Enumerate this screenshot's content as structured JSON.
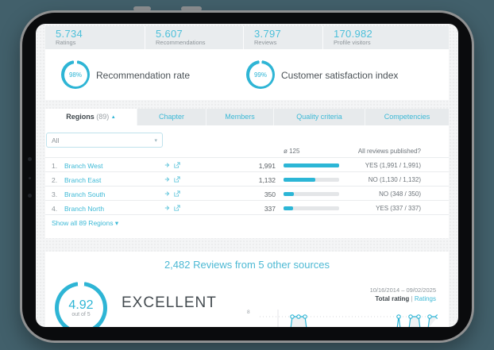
{
  "colors": {
    "accent": "#2eb5d5",
    "accent_light": "#4cc0da",
    "page_background": "#42606b",
    "band_background": "#e9ecee",
    "dark_text": "#424a4f",
    "gray_text": "#8d9499"
  },
  "stats": [
    {
      "value": "5.734",
      "label": "Ratings"
    },
    {
      "value": "5.607",
      "label": "Recommendations"
    },
    {
      "value": "3.797",
      "label": "Reviews"
    },
    {
      "value": "170.982",
      "label": "Profile visitors"
    }
  ],
  "gauges": [
    {
      "value": "98%",
      "percent": 98,
      "label": "Recommendation rate"
    },
    {
      "value": "99%",
      "percent": 99,
      "label": "Customer satisfaction index"
    }
  ],
  "tabs": {
    "regions_label": "Regions",
    "regions_count": "(89)",
    "items": [
      "Chapter",
      "Members",
      "Quality criteria",
      "Competencies"
    ]
  },
  "filter": {
    "value": "All"
  },
  "table": {
    "avg_header": "ø 125",
    "published_header": "All reviews published?",
    "rows": [
      {
        "index": "1.",
        "name": "Branch West",
        "value": "1,991",
        "bar_pct": 100,
        "published": "YES (1,991 / 1,991)"
      },
      {
        "index": "2.",
        "name": "Branch East",
        "value": "1,132",
        "bar_pct": 57,
        "published": "NO (1,130 / 1,132)"
      },
      {
        "index": "3.",
        "name": "Branch South",
        "value": "350",
        "bar_pct": 18,
        "published": "NO (348 / 350)"
      },
      {
        "index": "4.",
        "name": "Branch North",
        "value": "337",
        "bar_pct": 17,
        "published": "YES (337 / 337)"
      }
    ],
    "show_all": "Show all 89 Regions"
  },
  "reviews": {
    "title": "2,482 Reviews from 5 other sources",
    "score": "4.92",
    "score_sub": "out of 5",
    "score_percent": 98,
    "grade": "EXCELLENT",
    "date_range": "10/16/2014 – 09/02/2025",
    "total_rating_label": "Total rating",
    "separator": "|",
    "ratings_link": "Ratings"
  },
  "chart_data": {
    "type": "line",
    "title": "Ratings sparkline (bottom edge cut off by device bezel)",
    "ytick_label": "8",
    "gridline_value": 8,
    "baseline_value": 0,
    "series": [
      {
        "name": "Ratings",
        "peak_value": 8,
        "marker_groups_x": [
          [
            45,
            53,
            61
          ],
          [
            179
          ],
          [
            194,
            204
          ],
          [
            218,
            230
          ]
        ]
      }
    ],
    "grid": "dotted horizontal line at y=8",
    "legend": "none"
  }
}
